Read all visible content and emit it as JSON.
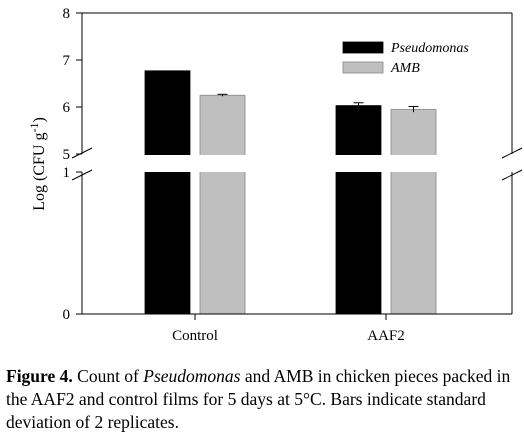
{
  "chart_data": {
    "type": "bar",
    "categories": [
      "Control",
      "AAF2"
    ],
    "series": [
      {
        "name": "Pseudomonas",
        "italic": true,
        "color": "#000000",
        "values": [
          6.77,
          6.03
        ],
        "errors": [
          0.0,
          0.06
        ]
      },
      {
        "name": "AMB",
        "italic": true,
        "color": "#bfbfbf",
        "values": [
          6.25,
          5.95
        ],
        "errors": [
          0.02,
          0.06
        ]
      }
    ],
    "ylabel_base": "Log (CFU  g",
    "ylabel_sup": "-1",
    "ylabel_close": ")",
    "y_broken_axis": {
      "lower_segment": [
        0,
        1
      ],
      "upper_segment": [
        5,
        8
      ],
      "lower_ticks": [
        "0",
        "1"
      ],
      "upper_ticks": [
        "5",
        "6",
        "7",
        "8"
      ]
    },
    "legend_position": "top-right",
    "grid": false
  },
  "caption": {
    "label": "Figure 4.",
    "text_1": " Count of ",
    "italic_1": "Pseudomonas",
    "text_2": " and AMB in chicken pieces packed in the AAF2 and control films for 5 days at 5°C. Bars indicate standard deviation of 2 replicates."
  }
}
